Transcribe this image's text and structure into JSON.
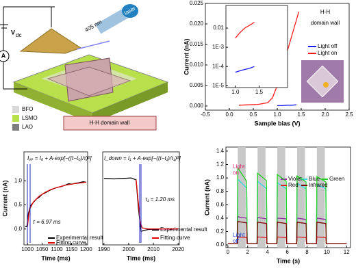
{
  "schematic": {
    "laser_wavelength": "405 nm",
    "laser": "laser",
    "voltage": "V",
    "voltage_sub": "dc",
    "ammeter": "A",
    "layers": [
      {
        "name": "BFO",
        "color": "#d9d9d9"
      },
      {
        "name": "LSMO",
        "color": "#b8e04a"
      },
      {
        "name": "LAO",
        "color": "#7f7f7f"
      }
    ],
    "wall_label": "H-H domain wall"
  },
  "chart_data": [
    {
      "type": "line",
      "xlabel": "Sample bias (V)",
      "ylabel": "Current (nA)",
      "annotation_title": "H-H",
      "annotation_subtitle": "domain wall",
      "xlim": [
        -0.5,
        2.5
      ],
      "ylim": [
        -0.001,
        0.025
      ],
      "xticks": [
        -0.5,
        {
          "value": 0,
          "label": "0.0"
        },
        0.5,
        {
          "value": 1,
          "label": "1.0"
        },
        1.5,
        {
          "value": 2,
          "label": "2.0"
        },
        2.5
      ],
      "yticks": [
        {
          "value": 0,
          "label": "0.000"
        },
        {
          "value": 0.005,
          "label": "0.005"
        },
        {
          "value": 0.01,
          "label": "0.010"
        },
        {
          "value": 0.015,
          "label": "0.015"
        },
        {
          "value": 0.02,
          "label": "0.020"
        },
        {
          "value": 0.025,
          "label": "0.025"
        }
      ],
      "legend": "right",
      "series": [
        {
          "name": "Light off",
          "color": "#1a1aff",
          "x": [
            1.0,
            1.1,
            1.2,
            1.3,
            1.4
          ],
          "values": [
            0.0001,
            0.0001,
            0.0002,
            0.0002,
            0.0003
          ]
        },
        {
          "name": "Light on",
          "color": "#ff1a1a",
          "x": [
            0.2,
            0.4,
            0.6,
            0.8,
            0.9,
            1.0,
            1.1,
            1.2,
            1.3,
            1.4,
            1.45
          ],
          "values": [
            0.0002,
            0.0003,
            0.0004,
            0.0008,
            0.002,
            0.005,
            0.009,
            0.013,
            0.017,
            0.021,
            0.023
          ]
        }
      ]
    },
    {
      "type": "line",
      "log_y": true,
      "xlim": [
        0.8,
        2.1
      ],
      "ylim": [
        8e-06,
        0.15
      ],
      "xticks": [
        {
          "value": 1,
          "label": "1.0"
        },
        1.5
      ],
      "yticks": [
        0.01,
        {
          "value": 0.001,
          "label": "1E-3"
        },
        {
          "value": 0.0001,
          "label": "1E-4"
        },
        {
          "value": 1e-05,
          "label": "1E-5"
        }
      ],
      "series": [
        {
          "color": "#1a1aff",
          "x": [
            1.0,
            1.1,
            1.2,
            1.3,
            1.4
          ],
          "values": [
            5e-05,
            6e-05,
            7e-05,
            8e-05,
            0.0001
          ]
        },
        {
          "color": "#ff1a1a",
          "x": [
            1.0,
            1.1,
            1.2,
            1.3,
            1.4
          ],
          "values": [
            0.003,
            0.006,
            0.01,
            0.014,
            0.02
          ]
        }
      ]
    },
    {
      "type": "line",
      "xlabel": "Time (ms)",
      "ylabel": "Current (nA)",
      "xlim": [
        988,
        1205
      ],
      "ylim": [
        -0.33,
        1.6
      ],
      "xticks": [
        1000,
        1050,
        1100,
        1150,
        1200
      ],
      "yticks": [
        {
          "value": 0,
          "label": "0.0"
        },
        0.5,
        {
          "value": 1,
          "label": "1.0"
        }
      ],
      "annotations": [
        "Iᵤₚ = I₀ + A·exp[−((t−t₀)/τ)ᵝ]",
        "τ = 6.97 ms"
      ],
      "legend": "lower right",
      "series": [
        {
          "name": "Experimental result",
          "color": "#000000",
          "x": [
            992,
            998,
            1001,
            1003,
            1006,
            1010,
            1020,
            1030,
            1040,
            1050,
            1060,
            1075,
            1090,
            1100,
            1115,
            1125,
            1140,
            1150,
            1165,
            1175,
            1190,
            1200
          ],
          "values": [
            0.05,
            0.05,
            0.2,
            0.32,
            0.38,
            0.48,
            0.55,
            0.62,
            0.66,
            0.72,
            0.75,
            0.8,
            0.84,
            0.86,
            0.88,
            0.9,
            0.94,
            0.93,
            0.95,
            0.96,
            0.98,
            0.97
          ]
        },
        {
          "name": "Fitting curve",
          "color": "#e00000",
          "x": [
            1000,
            1005,
            1010,
            1020,
            1040,
            1060,
            1080,
            1100,
            1130,
            1160,
            1200
          ],
          "values": [
            0.05,
            0.33,
            0.44,
            0.56,
            0.68,
            0.76,
            0.82,
            0.86,
            0.91,
            0.94,
            0.97
          ]
        }
      ]
    },
    {
      "type": "line",
      "xlim": [
        1989.5,
        2020.5
      ],
      "ylim": [
        -0.33,
        1.6
      ],
      "xlabel": "Time (ms)",
      "xticks": [
        1990,
        2000,
        2010,
        2020
      ],
      "annotations": [
        "I_down = I₁ + A·exp[−((t−t₁)/τ₁)ᵝ]",
        "τ₁ = 1.20 ms"
      ],
      "legend": "lower right",
      "series": [
        {
          "name": "Experimental result",
          "color": "#000000",
          "x": [
            1990,
            1994,
            1998,
            2001,
            2003,
            2004,
            2005,
            2006,
            2008,
            2012,
            2016,
            2020
          ],
          "values": [
            1.05,
            1.04,
            1.05,
            1.06,
            1.02,
            0.4,
            -0.05,
            -0.03,
            -0.01,
            0.0,
            0.0,
            0.0
          ]
        },
        {
          "name": "Fitting curve",
          "color": "#e00000",
          "x": [
            2003,
            2004,
            2004.6,
            2005.5,
            2008,
            2020
          ],
          "values": [
            1.02,
            0.5,
            0.15,
            0.02,
            0.0,
            0.0
          ]
        }
      ]
    },
    {
      "type": "line",
      "xlabel": "Time (s)",
      "ylabel": "Current (nA)",
      "xlim": [
        -0.2,
        12.4
      ],
      "ylim": [
        -0.04,
        1.46
      ],
      "xticks": [
        0,
        2,
        4,
        6,
        8,
        10,
        12
      ],
      "yticks": [
        {
          "value": 0,
          "label": "0.0"
        },
        0.2,
        0.4,
        0.6,
        0.8,
        {
          "value": 1,
          "label": "1.0"
        },
        1.2,
        1.4
      ],
      "shaded_x": [
        [
          1.0,
          1.8
        ],
        [
          3.0,
          3.8
        ],
        [
          5.0,
          5.8
        ],
        [
          7.0,
          7.8
        ],
        [
          9.0,
          9.8
        ]
      ],
      "annotations": [
        {
          "text": "Light\non",
          "color": "#e0206a"
        },
        {
          "text": "Light\noff",
          "color": "#2040d0"
        }
      ],
      "legend": "upper right",
      "series": [
        {
          "name": "Violet",
          "color": "#9020a0",
          "x": [
            0,
            0.95,
            1.0,
            1.9,
            1.95,
            2.95,
            3.0,
            3.9,
            3.95,
            4.95,
            5.0,
            5.9,
            5.95,
            6.95,
            7.0,
            7.9,
            7.95,
            8.95,
            9.0,
            9.9,
            9.95,
            12
          ],
          "values": [
            0.02,
            0.02,
            0.42,
            0.4,
            0.02,
            0.02,
            0.41,
            0.39,
            0.02,
            0.02,
            0.4,
            0.39,
            0.02,
            0.02,
            0.4,
            0.38,
            0.02,
            0.02,
            0.4,
            0.38,
            0.02,
            0.02
          ]
        },
        {
          "name": "Blue",
          "color": "#30d8e8",
          "x": [
            0,
            0.95,
            1.0,
            1.9,
            1.95,
            2.95,
            3.0,
            3.9,
            3.95,
            4.95,
            5.0,
            5.9,
            5.95,
            6.95,
            7.0,
            7.9,
            7.95,
            8.95,
            9.0,
            9.9,
            9.95,
            12
          ],
          "values": [
            0.02,
            0.02,
            0.98,
            0.85,
            0.02,
            0.02,
            0.95,
            0.84,
            0.02,
            0.02,
            0.93,
            0.84,
            0.02,
            0.02,
            0.92,
            0.84,
            0.02,
            0.02,
            0.9,
            0.84,
            0.02,
            0.02
          ]
        },
        {
          "name": "Green",
          "color": "#20d020",
          "x": [
            0,
            0.95,
            1.0,
            1.9,
            1.95,
            2.95,
            3.0,
            3.9,
            3.95,
            4.95,
            5.0,
            5.9,
            5.95,
            6.95,
            7.0,
            7.9,
            7.95,
            8.95,
            9.0,
            9.9,
            9.95,
            12
          ],
          "values": [
            0.02,
            0.02,
            1.15,
            0.95,
            0.02,
            0.02,
            1.07,
            0.96,
            0.02,
            0.02,
            1.05,
            0.95,
            0.02,
            0.02,
            1.03,
            0.94,
            0.02,
            0.02,
            1.02,
            0.94,
            0.02,
            0.02
          ]
        },
        {
          "name": "Red",
          "color": "#e02020",
          "x": [
            0,
            0.95,
            1.0,
            1.9,
            1.95,
            2.95,
            3.0,
            3.9,
            3.95,
            4.95,
            5.0,
            5.9,
            5.95,
            6.95,
            7.0,
            7.9,
            7.95,
            8.95,
            9.0,
            9.9,
            9.95,
            12
          ],
          "values": [
            0.02,
            0.02,
            0.12,
            0.11,
            0.02,
            0.02,
            0.12,
            0.11,
            0.02,
            0.02,
            0.12,
            0.11,
            0.02,
            0.02,
            0.12,
            0.11,
            0.02,
            0.02,
            0.12,
            0.11,
            0.02,
            0.02
          ]
        },
        {
          "name": "Infrared",
          "color": "#800000",
          "x": [
            0,
            0.95,
            1.0,
            1.9,
            1.95,
            2.95,
            3.0,
            3.9,
            3.95,
            4.95,
            5.0,
            5.9,
            5.95,
            6.95,
            7.0,
            7.9,
            7.95,
            8.95,
            9.0,
            9.9,
            9.95,
            12
          ],
          "values": [
            0.02,
            0.02,
            0.35,
            0.33,
            0.02,
            0.02,
            0.34,
            0.32,
            0.02,
            0.02,
            0.34,
            0.32,
            0.02,
            0.02,
            0.34,
            0.32,
            0.02,
            0.02,
            0.34,
            0.32,
            0.02,
            0.02
          ]
        }
      ]
    }
  ]
}
